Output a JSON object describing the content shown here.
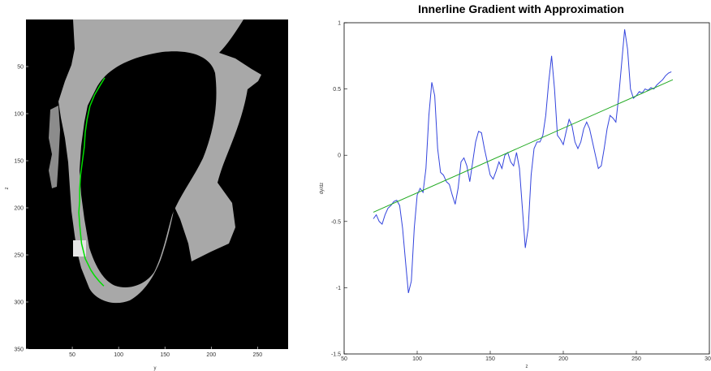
{
  "chart_data": [
    {
      "type": "image",
      "xlabel": "y",
      "ylabel": "z",
      "x_ticks": [
        "50",
        "100",
        "150",
        "200",
        "250"
      ],
      "y_ticks": [
        "50",
        "100",
        "150",
        "200",
        "250",
        "300",
        "350"
      ],
      "xlim": [
        0,
        283
      ],
      "ylim": [
        350,
        0
      ],
      "colors": {
        "background": "#000000",
        "tissue": "#b8b8b8",
        "boundary": "#00dd00"
      },
      "series": [
        {
          "x": [
            85,
            80,
            74,
            69,
            66,
            64,
            63,
            61,
            59,
            58,
            58,
            57,
            58,
            59,
            60,
            62,
            64,
            67,
            70,
            74,
            79,
            84
          ],
          "y": [
            62,
            70,
            80,
            92,
            106,
            120,
            135,
            150,
            165,
            180,
            192,
            205,
            218,
            228,
            238,
            246,
            254,
            260,
            266,
            272,
            278,
            283
          ]
        }
      ]
    },
    {
      "type": "line",
      "title": "Innerline Gradient with Approximation",
      "xlabel": "z",
      "ylabel": "dy/dz",
      "xlim": [
        50,
        300
      ],
      "ylim": [
        -1.5,
        1
      ],
      "x_ticks": [
        "50",
        "100",
        "150",
        "200",
        "250",
        "300"
      ],
      "y_ticks": [
        "1",
        "0.5",
        "0",
        "-0.5",
        "-1",
        "-1.5"
      ],
      "colors": {
        "gradient": "#3344dd",
        "approximation": "#22aa22"
      },
      "series": [
        {
          "x": [
            70,
            72,
            74,
            76,
            78,
            80,
            82,
            84,
            86,
            88,
            90,
            92,
            94,
            96,
            98,
            100,
            102,
            104,
            106,
            108,
            110,
            112,
            114,
            116,
            118,
            120,
            122,
            124,
            126,
            128,
            130,
            132,
            134,
            136,
            138,
            140,
            142,
            144,
            146,
            148,
            150,
            152,
            154,
            156,
            158,
            160,
            162,
            164,
            166,
            168,
            170,
            172,
            174,
            176,
            178,
            180,
            182,
            184,
            186,
            188,
            190,
            192,
            194,
            196,
            198,
            200,
            202,
            204,
            206,
            208,
            210,
            212,
            214,
            216,
            218,
            220,
            222,
            224,
            226,
            228,
            230,
            232,
            234,
            236,
            238,
            240,
            242,
            244,
            246,
            248,
            250,
            252,
            254,
            256,
            258,
            260,
            262,
            264,
            266,
            268,
            270,
            272,
            274
          ],
          "y": [
            -0.48,
            -0.45,
            -0.5,
            -0.52,
            -0.45,
            -0.4,
            -0.38,
            -0.35,
            -0.34,
            -0.38,
            -0.55,
            -0.8,
            -1.04,
            -0.95,
            -0.55,
            -0.3,
            -0.25,
            -0.28,
            -0.1,
            0.3,
            0.55,
            0.45,
            0.05,
            -0.13,
            -0.15,
            -0.2,
            -0.22,
            -0.3,
            -0.37,
            -0.25,
            -0.05,
            -0.02,
            -0.08,
            -0.2,
            -0.05,
            0.1,
            0.18,
            0.17,
            0.05,
            -0.05,
            -0.15,
            -0.18,
            -0.12,
            -0.05,
            -0.1,
            0.0,
            0.02,
            -0.05,
            -0.08,
            0.02,
            -0.1,
            -0.4,
            -0.7,
            -0.55,
            -0.15,
            0.05,
            0.1,
            0.1,
            0.15,
            0.3,
            0.55,
            0.75,
            0.5,
            0.15,
            0.12,
            0.08,
            0.18,
            0.27,
            0.22,
            0.1,
            0.05,
            0.1,
            0.2,
            0.25,
            0.2,
            0.1,
            0.0,
            -0.1,
            -0.08,
            0.05,
            0.2,
            0.3,
            0.28,
            0.25,
            0.45,
            0.7,
            0.95,
            0.8,
            0.5,
            0.43,
            0.45,
            0.48,
            0.47,
            0.5,
            0.49,
            0.51,
            0.5,
            0.53,
            0.55,
            0.57,
            0.6,
            0.62,
            0.63
          ]
        },
        {
          "x": [
            70,
            275
          ],
          "y": [
            -0.43,
            0.57
          ]
        }
      ]
    }
  ]
}
